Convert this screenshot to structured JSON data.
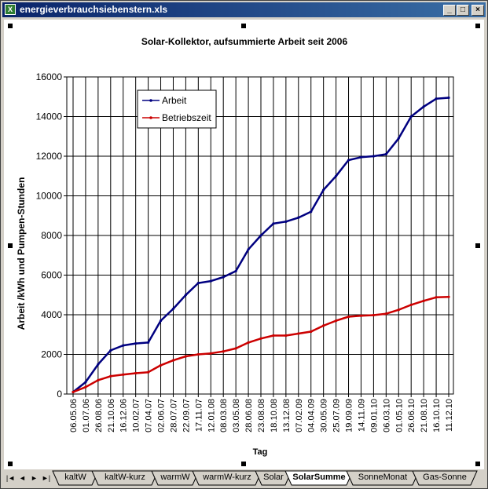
{
  "window": {
    "title": "energieverbrauchsiebenstern.xls",
    "icon": "excel-icon",
    "buttons": [
      "_",
      "□",
      "×"
    ]
  },
  "tabs": {
    "nav": [
      "|◄",
      "◄",
      "►",
      "►|"
    ],
    "items": [
      "kaltW",
      "kaltW-kurz",
      "warmW",
      "warmW-kurz",
      "Solar",
      "SolarSumme",
      "SonneMonat",
      "Gas-Sonne"
    ],
    "active": "SolarSumme"
  },
  "chart_data": {
    "type": "line",
    "title": "Solar-Kollektor, aufsummierte Arbeit  seit 2006",
    "xlabel": "Tag",
    "ylabel": "Arbeit /kWh und Pumpen-Stunden",
    "ylim": [
      0,
      16000
    ],
    "yticks": [
      0,
      2000,
      4000,
      6000,
      8000,
      10000,
      12000,
      14000,
      16000
    ],
    "categories": [
      "06.05.06",
      "01.07.06",
      "26.08.06",
      "21.10.06",
      "16.12.06",
      "10.02.07",
      "07.04.07",
      "02.06.07",
      "28.07.07",
      "22.09.07",
      "17.11.07",
      "12.01.08",
      "08.03.08",
      "03.05.08",
      "28.06.08",
      "23.08.08",
      "18.10.08",
      "13.12.08",
      "07.02.09",
      "04.04.09",
      "30.05.09",
      "25.07.09",
      "19.09.09",
      "14.11.09",
      "09.01.10",
      "06.03.10",
      "01.05.10",
      "26.06.10",
      "21.08.10",
      "16.10.10",
      "11.12.10"
    ],
    "legend_position": "top-left",
    "grid": true,
    "series": [
      {
        "name": "Arbeit",
        "color": "#000080",
        "values": [
          100,
          600,
          1500,
          2200,
          2450,
          2550,
          2600,
          3700,
          4300,
          5000,
          5600,
          5700,
          5900,
          6200,
          7300,
          8000,
          8600,
          8700,
          8900,
          9200,
          10300,
          11000,
          11800,
          11950,
          12000,
          12100,
          12900,
          14000,
          14500,
          14900,
          14950
        ]
      },
      {
        "name": "Betriebszeit",
        "color": "#cc0000",
        "values": [
          100,
          350,
          700,
          900,
          980,
          1050,
          1100,
          1450,
          1700,
          1900,
          2000,
          2050,
          2150,
          2300,
          2600,
          2800,
          2950,
          2950,
          3050,
          3150,
          3450,
          3700,
          3900,
          3950,
          3980,
          4050,
          4250,
          4500,
          4700,
          4880,
          4900
        ]
      }
    ]
  }
}
